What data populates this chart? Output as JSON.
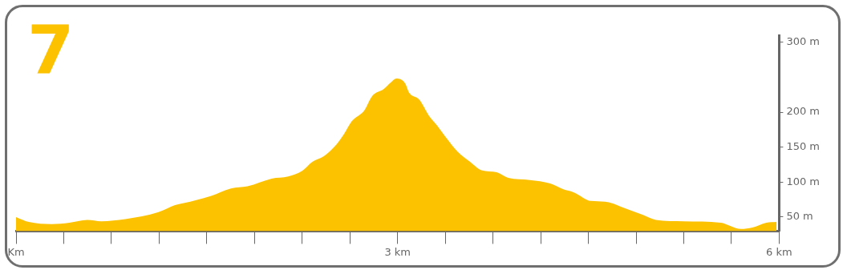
{
  "chart_data": {
    "type": "area",
    "title": "7",
    "x": [
      0,
      0.1,
      0.28,
      0.42,
      0.56,
      0.67,
      0.86,
      1.12,
      1.25,
      1.37,
      1.53,
      1.69,
      1.82,
      2.01,
      2.14,
      2.25,
      2.33,
      2.42,
      2.52,
      2.58,
      2.64,
      2.74,
      2.8,
      2.89,
      2.95,
      2.99,
      3.06,
      3.09,
      3.17,
      3.25,
      3.31,
      3.38,
      3.47,
      3.57,
      3.66,
      3.78,
      3.87,
      4.04,
      4.2,
      4.3,
      4.39,
      4.52,
      4.63,
      4.81,
      4.93,
      5.03,
      5.25,
      5.54,
      5.7,
      5.79,
      5.9,
      5.98
    ],
    "values": [
      50,
      43,
      40,
      42,
      46,
      44,
      47,
      57,
      67,
      72,
      80,
      91,
      94,
      105,
      108,
      116,
      129,
      137,
      154,
      169,
      187,
      203,
      223,
      233,
      243,
      248,
      241,
      228,
      218,
      194,
      181,
      164,
      144,
      129,
      117,
      114,
      106,
      103,
      98,
      90,
      85,
      73,
      72,
      61,
      53,
      46,
      44,
      42,
      33,
      35,
      42,
      43
    ],
    "color": "#fcc200",
    "xlim": [
      0,
      6
    ],
    "xticks": [
      {
        "value": 0,
        "label": "Km"
      },
      {
        "value": 0.375,
        "label": null
      },
      {
        "value": 0.75,
        "label": null
      },
      {
        "value": 1.125,
        "label": null
      },
      {
        "value": 1.5,
        "label": null
      },
      {
        "value": 1.875,
        "label": null
      },
      {
        "value": 2.25,
        "label": null
      },
      {
        "value": 2.625,
        "label": null
      },
      {
        "value": 3,
        "label": "3 km"
      },
      {
        "value": 3.375,
        "label": null
      },
      {
        "value": 3.75,
        "label": null
      },
      {
        "value": 4.125,
        "label": null
      },
      {
        "value": 4.5,
        "label": null
      },
      {
        "value": 4.875,
        "label": null
      },
      {
        "value": 5.25,
        "label": null
      },
      {
        "value": 5.625,
        "label": null
      },
      {
        "value": 6,
        "label": "6 km"
      }
    ],
    "ylim": [
      30,
      310
    ],
    "yticks": [
      {
        "value": 50,
        "label": "50 m"
      },
      {
        "value": 100,
        "label": "100 m"
      },
      {
        "value": 150,
        "label": "150 m"
      },
      {
        "value": 200,
        "label": "200 m"
      },
      {
        "value": 300,
        "label": "300 m"
      }
    ],
    "grid": false,
    "legend": false
  }
}
